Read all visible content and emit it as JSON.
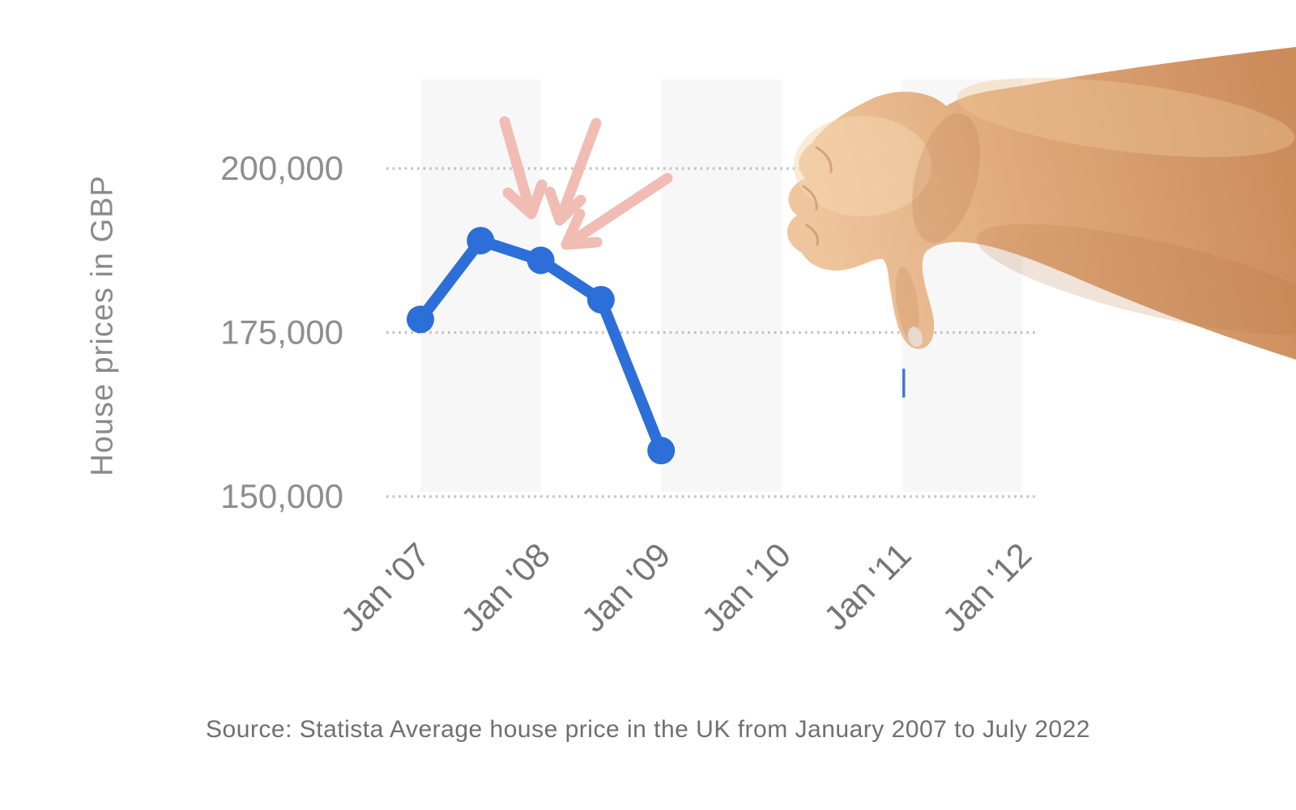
{
  "figure": {
    "y_axis_title": "House prices in GBP",
    "source_caption": "Source: Statista Average house price in the UK from January 2007 to July 2022"
  },
  "chart_data": {
    "type": "line",
    "title": "",
    "xlabel": "",
    "ylabel": "House prices in GBP",
    "x_tick_labels": [
      "Jan '07",
      "Jan '08",
      "Jan '09",
      "Jan '10",
      "Jan '11",
      "Jan '12"
    ],
    "y_ticks": [
      {
        "label": "200,000",
        "value": 200000
      },
      {
        "label": "175,000",
        "value": 175000
      },
      {
        "label": "150,000",
        "value": 150000
      }
    ],
    "ylim": [
      145000,
      213000
    ],
    "grid": "dotted-horizontal",
    "background_bands": "alternating one-year light-gray bands starting at Jan '07, Jan '09, Jan '11",
    "legend": "none",
    "series": [
      {
        "name": "Average house price in the UK (GBP)",
        "color": "#2d6fd8",
        "points": [
          {
            "label": "Jan 2007",
            "t": 0,
            "value": 177000
          },
          {
            "label": "Jul 2007",
            "t": 0.5,
            "value": 189000
          },
          {
            "label": "Jan 2008",
            "t": 1,
            "value": 186000
          },
          {
            "label": "Jul 2008",
            "t": 1.5,
            "value": 180000
          },
          {
            "label": "Jan 2009",
            "t": 2,
            "value": 157000
          }
        ]
      }
    ],
    "annotations": [
      {
        "name": "peak-arrows",
        "description": "three pink hand-drawn arrows pointing at the 2007-2008 price peak",
        "color": "#f0bcb4"
      },
      {
        "name": "thumbs-down-hand",
        "description": "photo-style thumbs-down hand and arm overlay entering from the right edge"
      }
    ]
  },
  "colors": {
    "band": "#f7f7f7",
    "grid_dots": "#c2c0be",
    "line": "#2d6fd8",
    "arrow_pink": "#f0bcb4",
    "artifact_blue": "#4579cc"
  }
}
